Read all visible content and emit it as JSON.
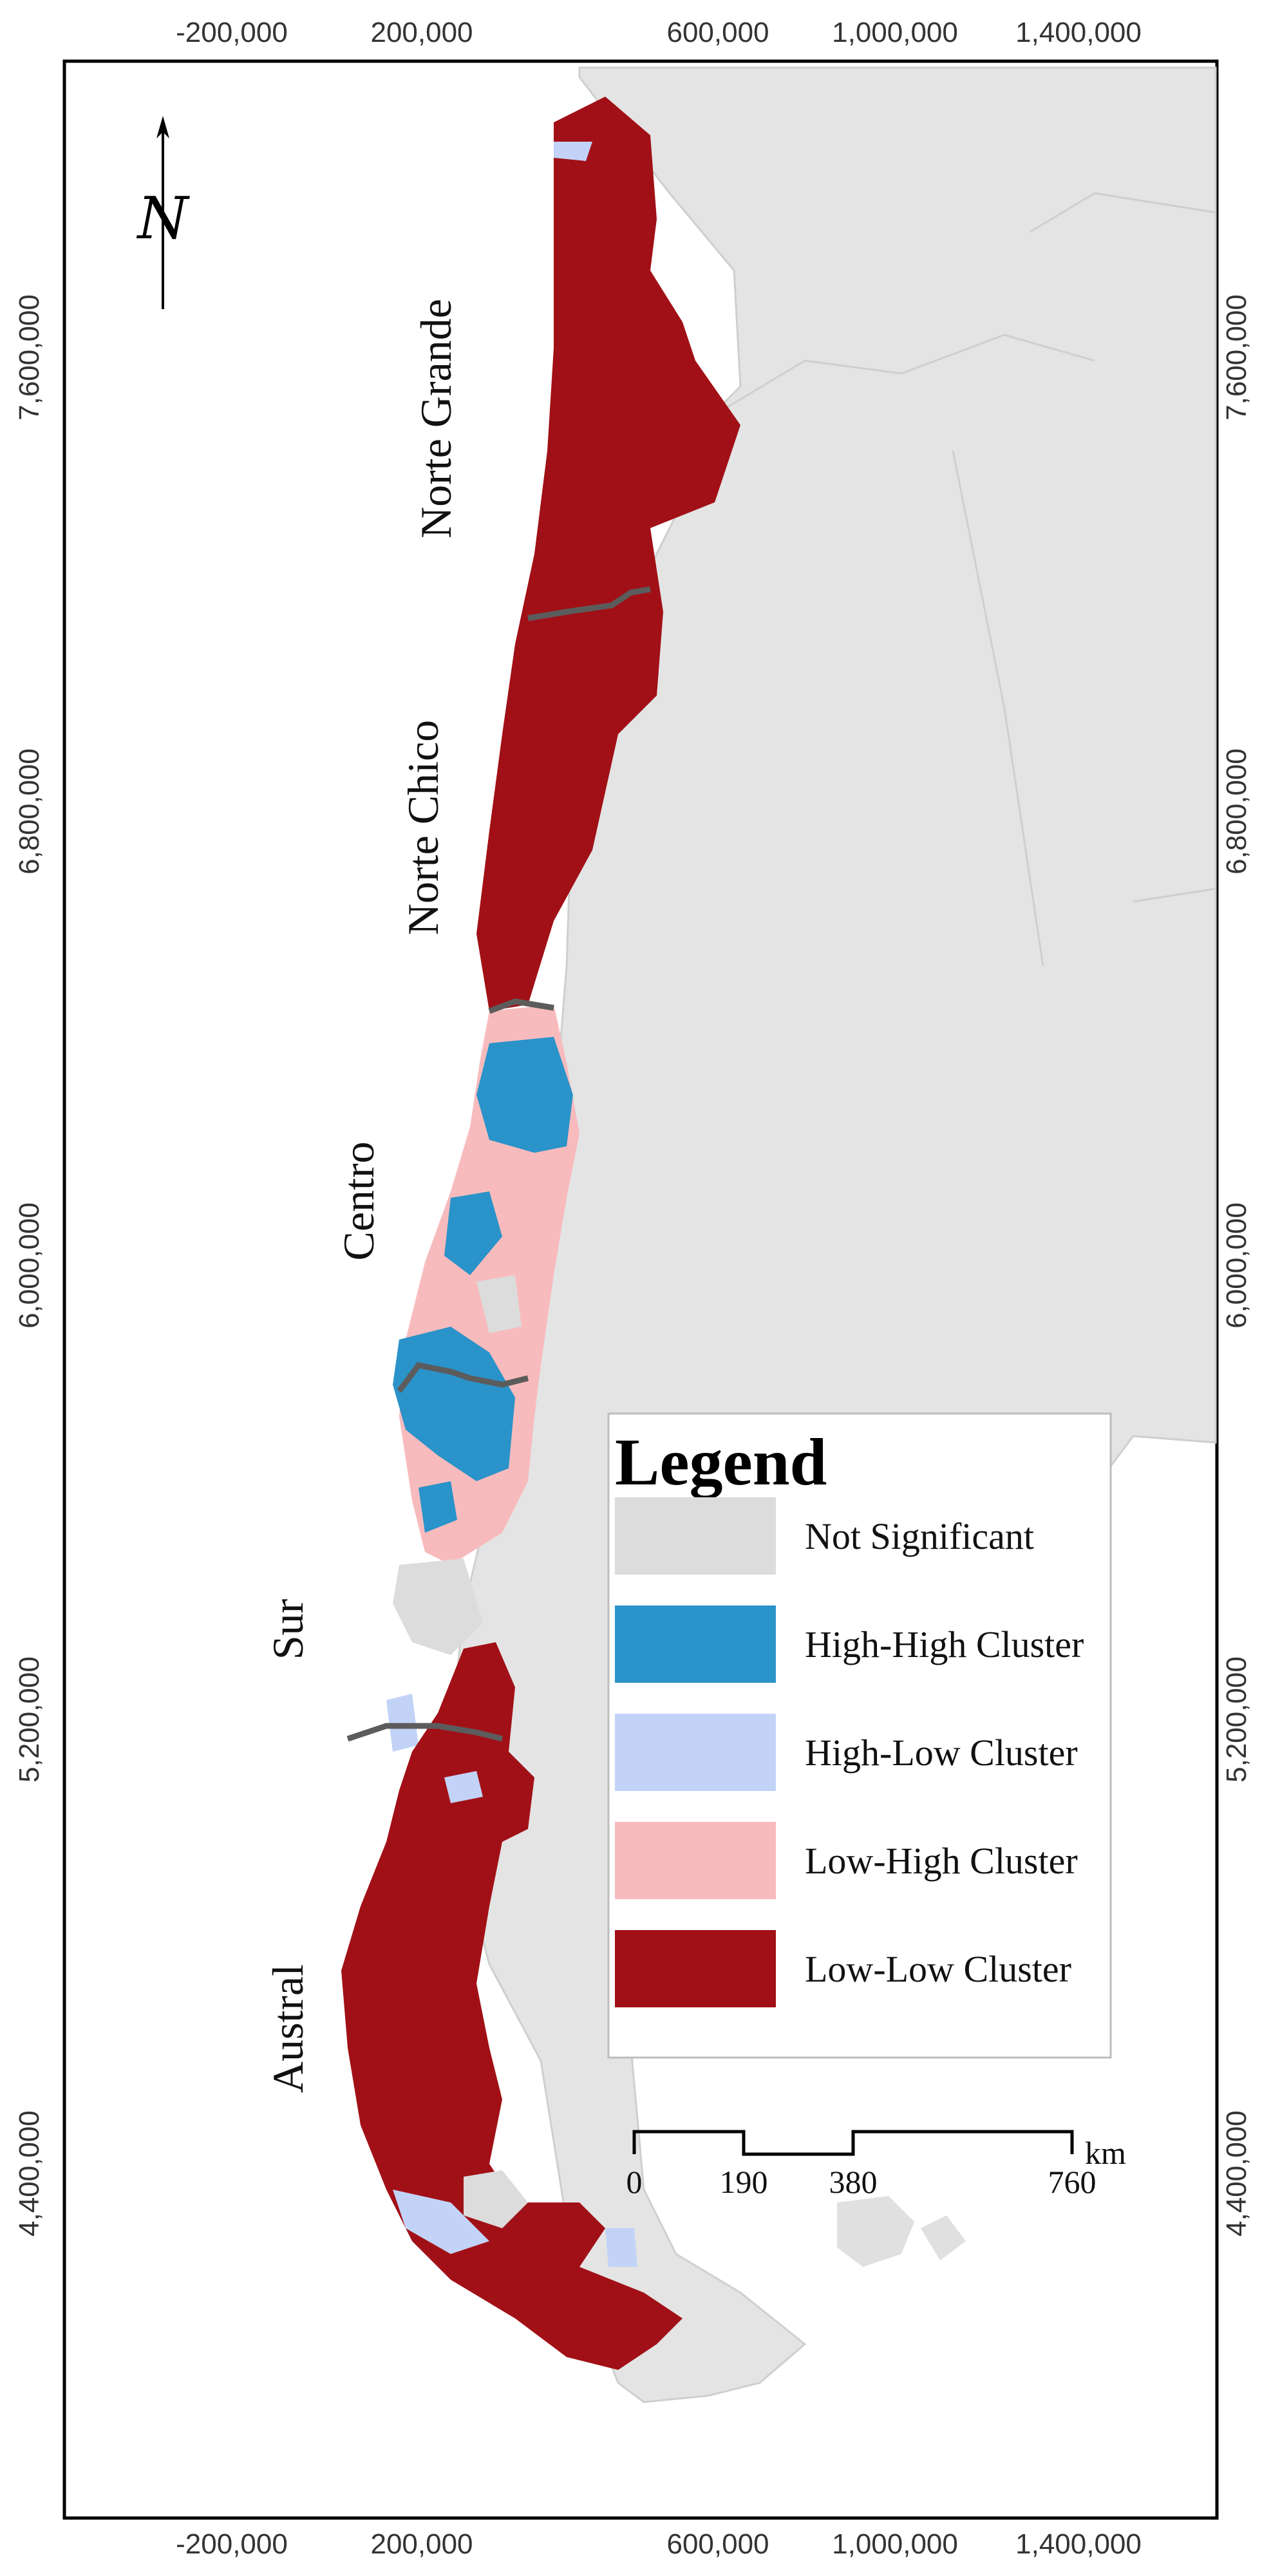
{
  "map": {
    "x_ticks": [
      "-200,000",
      "200,000",
      "600,000",
      "1,000,000",
      "1,400,000"
    ],
    "y_ticks": [
      "7,600,000",
      "6,800,000",
      "6,000,000",
      "5,200,000",
      "4,400,000"
    ],
    "north_arrow": {
      "letter": "N",
      "icon": "north-arrow-icon"
    },
    "regions": [
      "Norte Grande",
      "Norte Chico",
      "Centro",
      "Sur",
      "Austral"
    ]
  },
  "legend": {
    "title": "Legend",
    "items": [
      {
        "label": "Not Significant",
        "color": "#dcdcdc"
      },
      {
        "label": "High-High Cluster",
        "color": "#2a93c9"
      },
      {
        "label": "High-Low Cluster",
        "color": "#c2d3f7"
      },
      {
        "label": "Low-High Cluster",
        "color": "#f8bbbd"
      },
      {
        "label": "Low-Low Cluster",
        "color": "#a11016"
      }
    ]
  },
  "scale_bar": {
    "labels": [
      "0",
      "190",
      "380",
      "760"
    ],
    "unit": "km"
  },
  "colors": {
    "background_land": "#e4e4e4",
    "border_lines": "#5c5c5c",
    "frame": "#000000"
  }
}
